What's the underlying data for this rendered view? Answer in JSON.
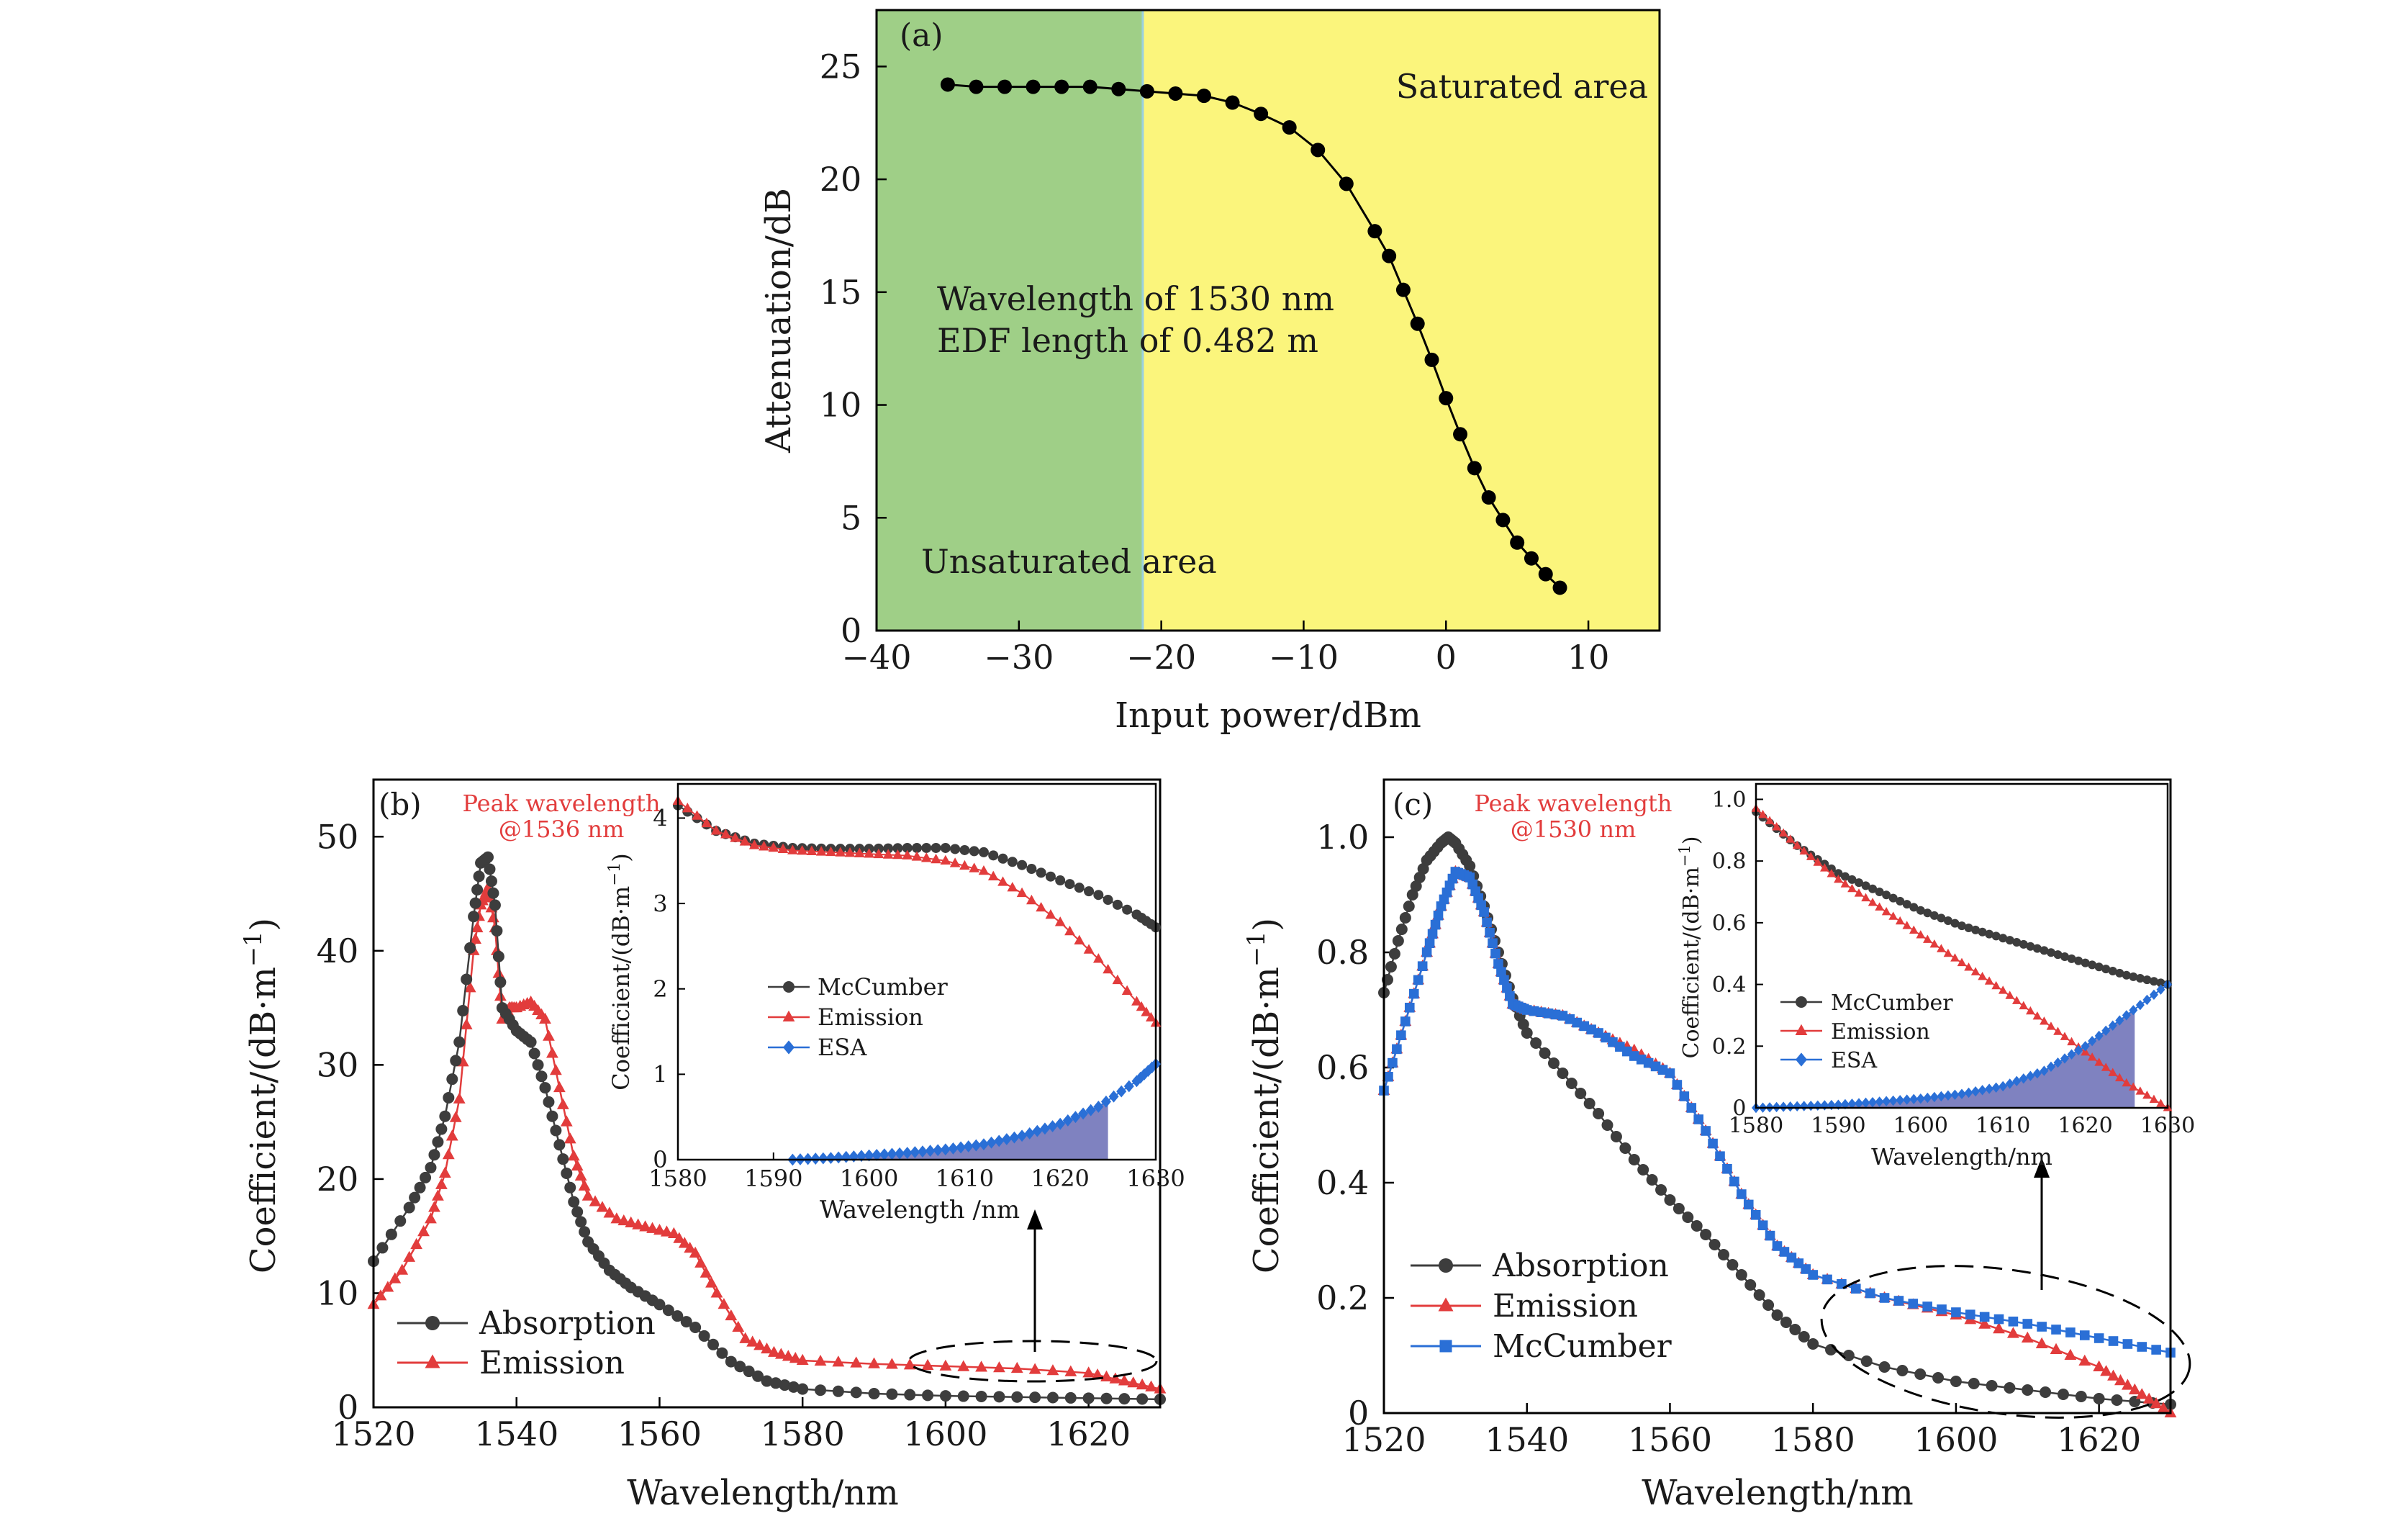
{
  "colors": {
    "black": "#000000",
    "gray": "#3d3d3d",
    "red": "#e23c3c",
    "blue": "#2a6fd6",
    "green": "#9fcf87",
    "yellow": "#fbf57c",
    "shade": "#7f82c0"
  },
  "chart_data": [
    {
      "id": "a",
      "type": "line",
      "panel_label": "(a)",
      "xlabel": "Input power/dBm",
      "ylabel": "Attenuation/dB",
      "xlim": [
        -40,
        15
      ],
      "ylim": [
        0,
        27.5
      ],
      "xticks": [
        -40,
        -30,
        -20,
        -10,
        0,
        10
      ],
      "xtick_labels": [
        "−40",
        "−30",
        "−20",
        "−10",
        "0",
        "10"
      ],
      "yticks": [
        0,
        5,
        10,
        15,
        20,
        25
      ],
      "ytick_labels": [
        "0",
        "5",
        "10",
        "15",
        "20",
        "25"
      ],
      "regions": [
        {
          "name": "Unsaturated area",
          "x0": -40,
          "x1": -21.3,
          "color": "#9fcf87"
        },
        {
          "name": "Saturated area",
          "x0": -21.3,
          "x1": 15,
          "color": "#fbf57c"
        }
      ],
      "annotations": [
        "Wavelength of 1530 nm",
        "EDF length of 0.482 m"
      ],
      "series": [
        {
          "marker": "circle",
          "color": "#000000",
          "x": [
            -35,
            -33,
            -31,
            -29,
            -27,
            -25,
            -23,
            -21,
            -19,
            -17,
            -15,
            -13,
            -11,
            -9,
            -7,
            -5,
            -4,
            -3,
            -2,
            -1,
            0,
            1,
            2,
            3,
            4,
            5,
            6,
            7,
            8
          ],
          "y": [
            24.2,
            24.1,
            24.1,
            24.1,
            24.1,
            24.1,
            24.0,
            23.9,
            23.8,
            23.7,
            23.4,
            22.9,
            22.3,
            21.3,
            19.8,
            17.7,
            16.6,
            15.1,
            13.6,
            12.0,
            10.3,
            8.7,
            7.2,
            5.9,
            4.9,
            3.9,
            3.2,
            2.5,
            1.9
          ]
        }
      ]
    },
    {
      "id": "b",
      "type": "line",
      "panel_label": "(b)",
      "peak_label": [
        "Peak wavelength",
        "@1536 nm"
      ],
      "xlabel": "Wavelength/nm",
      "ylabel": "Coefficient/(dB·m",
      "ylabel_sup": "−1",
      "ylabel_close": ")",
      "xlim": [
        1520,
        1630
      ],
      "ylim": [
        0,
        55
      ],
      "xticks": [
        1520,
        1540,
        1560,
        1580,
        1600,
        1620
      ],
      "xtick_labels": [
        "1520",
        "1540",
        "1560",
        "1580",
        "1600",
        "1620"
      ],
      "yticks": [
        0,
        10,
        20,
        30,
        40,
        50
      ],
      "ytick_labels": [
        "0",
        "10",
        "20",
        "30",
        "40",
        "50"
      ],
      "legend_placement": "bottom-left",
      "series": [
        {
          "name": "Absorption",
          "marker": "circle",
          "color": "#3d3d3d",
          "x": [
            1520,
            1525,
            1528,
            1530,
            1532,
            1534,
            1535,
            1536,
            1537,
            1538,
            1540,
            1542,
            1544,
            1546,
            1548,
            1550,
            1553,
            1556,
            1560,
            1565,
            1570,
            1575,
            1580,
            1590,
            1600,
            1610,
            1620,
            1630
          ],
          "y": [
            12.8,
            17.5,
            21.0,
            25.5,
            32.0,
            43.0,
            47.7,
            48.2,
            44.0,
            35.0,
            33.0,
            32.0,
            28.0,
            23.0,
            18.0,
            14.5,
            12.0,
            10.5,
            9.0,
            7.0,
            4.0,
            2.3,
            1.6,
            1.2,
            1.0,
            0.9,
            0.8,
            0.7
          ]
        },
        {
          "name": "Emission",
          "marker": "triangle",
          "color": "#e23c3c",
          "x": [
            1520,
            1524,
            1528,
            1530,
            1532,
            1534,
            1535,
            1536,
            1537,
            1538,
            1539,
            1540,
            1542,
            1544,
            1546,
            1548,
            1550,
            1554,
            1558,
            1562,
            1565,
            1568,
            1572,
            1576,
            1580,
            1590,
            1600,
            1610,
            1620,
            1625,
            1630
          ],
          "y": [
            9.0,
            12.0,
            16.5,
            20.5,
            27.0,
            40.0,
            44.0,
            45.5,
            42.0,
            34.0,
            35.0,
            35.0,
            35.5,
            34.0,
            28.0,
            22.0,
            18.5,
            16.5,
            15.8,
            15.2,
            13.5,
            10.0,
            6.0,
            4.8,
            4.1,
            3.8,
            3.6,
            3.4,
            3.0,
            2.3,
            1.6
          ]
        }
      ],
      "inset": {
        "xlabel": "Wavelength /nm",
        "ylabel": "Coefficient/(dB·m",
        "ylabel_sup": "−1",
        "ylabel_close": ")",
        "xlim": [
          1580,
          1630
        ],
        "ylim": [
          0,
          4.4
        ],
        "xticks": [
          1580,
          1590,
          1600,
          1610,
          1620,
          1630
        ],
        "xtick_labels": [
          "1580",
          "1590",
          "1600",
          "1610",
          "1620",
          "1630"
        ],
        "yticks": [
          0,
          1,
          2,
          3,
          4
        ],
        "ytick_labels": [
          "0",
          "1",
          "2",
          "3",
          "4"
        ],
        "shade_until": 1625,
        "series": [
          {
            "name": "McCumber",
            "marker": "circle",
            "color": "#3d3d3d",
            "x": [
              1580,
              1584,
              1588,
              1592,
              1596,
              1600,
              1604,
              1608,
              1612,
              1616,
              1620,
              1624,
              1628,
              1630
            ],
            "y": [
              4.15,
              3.85,
              3.7,
              3.65,
              3.64,
              3.64,
              3.65,
              3.65,
              3.6,
              3.45,
              3.27,
              3.1,
              2.87,
              2.72
            ]
          },
          {
            "name": "Emission",
            "marker": "triangle",
            "color": "#e23c3c",
            "x": [
              1580,
              1584,
              1588,
              1592,
              1596,
              1600,
              1604,
              1608,
              1612,
              1616,
              1620,
              1624,
              1628,
              1630
            ],
            "y": [
              4.2,
              3.85,
              3.68,
              3.62,
              3.6,
              3.58,
              3.56,
              3.5,
              3.38,
              3.12,
              2.78,
              2.35,
              1.85,
              1.6
            ]
          },
          {
            "name": "ESA",
            "marker": "diamond",
            "color": "#2a6fd6",
            "x": [
              1592,
              1596,
              1600,
              1604,
              1608,
              1612,
              1616,
              1620,
              1624,
              1628,
              1630
            ],
            "y": [
              0.0,
              0.02,
              0.05,
              0.08,
              0.12,
              0.18,
              0.28,
              0.42,
              0.62,
              0.92,
              1.12
            ]
          }
        ]
      }
    },
    {
      "id": "c",
      "type": "line",
      "panel_label": "(c)",
      "peak_label": [
        "Peak wavelength",
        "@1530 nm"
      ],
      "xlabel": "Wavelength/nm",
      "ylabel": "Coefficient/(dB·m",
      "ylabel_sup": "−1",
      "ylabel_close": ")",
      "xlim": [
        1520,
        1630
      ],
      "ylim": [
        0,
        1.1
      ],
      "xticks": [
        1520,
        1540,
        1560,
        1580,
        1600,
        1620
      ],
      "xtick_labels": [
        "1520",
        "1540",
        "1560",
        "1580",
        "1600",
        "1620"
      ],
      "yticks": [
        0,
        0.2,
        0.4,
        0.6,
        0.8,
        1.0
      ],
      "ytick_labels": [
        "0",
        "0.2",
        "0.4",
        "0.6",
        "0.8",
        "1.0"
      ],
      "legend_placement": "bottom-left",
      "series": [
        {
          "name": "Absorption",
          "marker": "circle",
          "color": "#3d3d3d",
          "x": [
            1520,
            1522,
            1524,
            1526,
            1528,
            1529,
            1530,
            1532,
            1534,
            1536,
            1538,
            1540,
            1545,
            1550,
            1555,
            1560,
            1565,
            1570,
            1575,
            1580,
            1590,
            1600,
            1610,
            1620,
            1630
          ],
          "y": [
            0.73,
            0.82,
            0.9,
            0.96,
            0.99,
            1.0,
            0.99,
            0.95,
            0.88,
            0.8,
            0.72,
            0.66,
            0.59,
            0.52,
            0.44,
            0.37,
            0.31,
            0.24,
            0.17,
            0.12,
            0.08,
            0.055,
            0.04,
            0.025,
            0.015
          ]
        },
        {
          "name": "Emission",
          "marker": "triangle",
          "color": "#e23c3c",
          "x": [
            1520,
            1523,
            1526,
            1528,
            1530,
            1532,
            1534,
            1536,
            1538,
            1540,
            1545,
            1550,
            1555,
            1560,
            1565,
            1570,
            1575,
            1580,
            1590,
            1600,
            1610,
            1620,
            1625,
            1630
          ],
          "y": [
            0.56,
            0.68,
            0.8,
            0.88,
            0.94,
            0.93,
            0.87,
            0.78,
            0.71,
            0.7,
            0.69,
            0.66,
            0.63,
            0.59,
            0.49,
            0.38,
            0.29,
            0.24,
            0.2,
            0.17,
            0.13,
            0.08,
            0.04,
            0.0
          ]
        },
        {
          "name": "McCumber",
          "marker": "square",
          "color": "#2a6fd6",
          "x": [
            1520,
            1523,
            1526,
            1528,
            1530,
            1532,
            1534,
            1536,
            1538,
            1540,
            1545,
            1550,
            1555,
            1560,
            1565,
            1570,
            1575,
            1580,
            1590,
            1600,
            1610,
            1620,
            1630
          ],
          "y": [
            0.56,
            0.68,
            0.8,
            0.88,
            0.94,
            0.93,
            0.87,
            0.78,
            0.71,
            0.7,
            0.69,
            0.66,
            0.62,
            0.59,
            0.49,
            0.38,
            0.29,
            0.24,
            0.2,
            0.175,
            0.155,
            0.13,
            0.105
          ]
        }
      ],
      "inset": {
        "xlabel": "Wavelength/nm",
        "ylabel": "Coefficient/(dB·m",
        "ylabel_sup": "−1",
        "ylabel_close": ")",
        "xlim": [
          1580,
          1630
        ],
        "ylim": [
          0,
          1.05
        ],
        "xticks": [
          1580,
          1590,
          1600,
          1610,
          1620,
          1630
        ],
        "xtick_labels": [
          "1580",
          "1590",
          "1600",
          "1610",
          "1620",
          "1630"
        ],
        "yticks": [
          0,
          0.2,
          0.4,
          0.6,
          0.8,
          1.0
        ],
        "ytick_labels": [
          "0",
          "0.2",
          "0.4",
          "0.6",
          "0.8",
          "1.0"
        ],
        "shade_until": 1626,
        "series": [
          {
            "name": "McCumber",
            "marker": "circle",
            "color": "#3d3d3d",
            "x": [
              1580,
              1585,
              1590,
              1595,
              1600,
              1605,
              1610,
              1615,
              1620,
              1625,
              1630
            ],
            "y": [
              0.96,
              0.85,
              0.76,
              0.7,
              0.64,
              0.59,
              0.55,
              0.51,
              0.47,
              0.43,
              0.4
            ]
          },
          {
            "name": "Emission",
            "marker": "triangle",
            "color": "#e23c3c",
            "x": [
              1580,
              1585,
              1590,
              1595,
              1600,
              1605,
              1610,
              1615,
              1620,
              1625,
              1630
            ],
            "y": [
              0.97,
              0.85,
              0.74,
              0.65,
              0.56,
              0.47,
              0.38,
              0.28,
              0.18,
              0.08,
              0.0
            ]
          },
          {
            "name": "ESA",
            "marker": "diamond",
            "color": "#2a6fd6",
            "x": [
              1580,
              1585,
              1590,
              1595,
              1600,
              1605,
              1610,
              1615,
              1620,
              1625,
              1630
            ],
            "y": [
              0.0,
              0.005,
              0.01,
              0.02,
              0.03,
              0.045,
              0.07,
              0.12,
              0.2,
              0.3,
              0.4
            ]
          }
        ]
      }
    }
  ]
}
